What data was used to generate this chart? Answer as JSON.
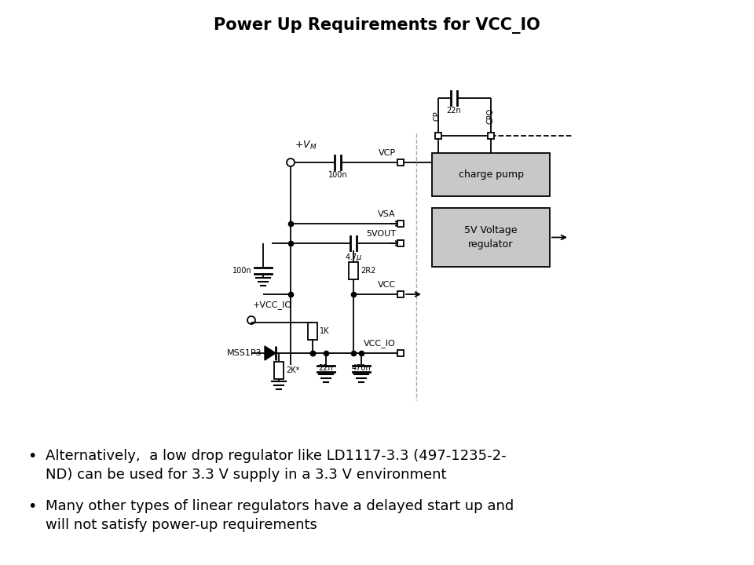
{
  "title": "Power Up Requirements for VCC_IO",
  "title_fontsize": 15,
  "title_fontweight": "bold",
  "bullet1_line1": "Alternatively,  a low drop regulator like LD1117-3.3 (497-1235-2-",
  "bullet1_line2": "ND) can be used for 3.3 V supply in a 3.3 V environment",
  "bullet2_line1": "Many other types of linear regulators have a delayed start up and",
  "bullet2_line2": "will not satisfy power-up requirements",
  "bullet_fontsize": 13,
  "bg_color": "#ffffff",
  "line_color": "#000000",
  "box_fill": "#c8c8c8"
}
